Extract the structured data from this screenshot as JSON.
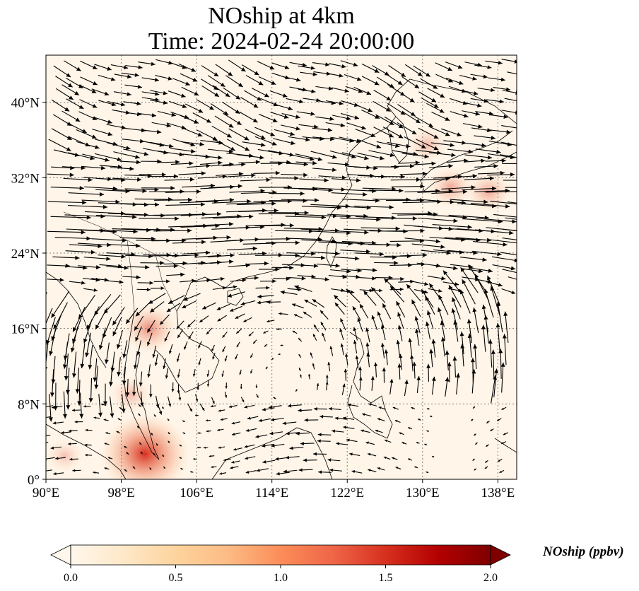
{
  "title_line1": "NOship at 4km",
  "title_line2": "Time: 2024-02-24 20:00:00",
  "map": {
    "lon_range": [
      90,
      140
    ],
    "lat_range": [
      0,
      45
    ],
    "lon_ticks": [
      {
        "value": 90,
        "label": "90°E"
      },
      {
        "value": 98,
        "label": "98°E"
      },
      {
        "value": 106,
        "label": "106°E"
      },
      {
        "value": 114,
        "label": "114°E"
      },
      {
        "value": 122,
        "label": "122°E"
      },
      {
        "value": 130,
        "label": "130°E"
      },
      {
        "value": 138,
        "label": "138°E"
      }
    ],
    "lat_ticks": [
      {
        "value": 0,
        "label": "0°"
      },
      {
        "value": 8,
        "label": "8°N"
      },
      {
        "value": 16,
        "label": "16°N"
      },
      {
        "value": 24,
        "label": "24°N"
      },
      {
        "value": 32,
        "label": "32°N"
      },
      {
        "value": 40,
        "label": "40°N"
      }
    ],
    "gridlines": true,
    "field_hotspots": [
      {
        "lon": 100.5,
        "lat": 2.7,
        "value": 1.2
      },
      {
        "lon": 101.0,
        "lat": 16.0,
        "value": 0.6
      },
      {
        "lon": 133.0,
        "lat": 31.0,
        "value": 0.45
      },
      {
        "lon": 137.0,
        "lat": 30.5,
        "value": 0.45
      },
      {
        "lon": 130.5,
        "lat": 35.5,
        "value": 0.35
      },
      {
        "lon": 99.0,
        "lat": 9.0,
        "value": 0.35
      },
      {
        "lon": 92.0,
        "lat": 2.5,
        "value": 0.3
      }
    ],
    "wind_vectors": "quiver arrows: strong westerlies (jet) across 22°N–36°N, weaker cyclonic/easterly flow south of 18°N"
  },
  "colorbar": {
    "label": "NOship (ppbv)",
    "colormap": "OrRd",
    "range": [
      0.0,
      2.0
    ],
    "ticks": [
      {
        "value": 0.0,
        "label": "0.0"
      },
      {
        "value": 0.5,
        "label": "0.5"
      },
      {
        "value": 1.0,
        "label": "1.0"
      },
      {
        "value": 1.5,
        "label": "1.5"
      },
      {
        "value": 2.0,
        "label": "2.0"
      }
    ],
    "colors": [
      "#fff7ec",
      "#fee8c8",
      "#fdd49e",
      "#fdbb84",
      "#fc8d59",
      "#ef6548",
      "#d7301f",
      "#b30000",
      "#7f0000"
    ]
  }
}
